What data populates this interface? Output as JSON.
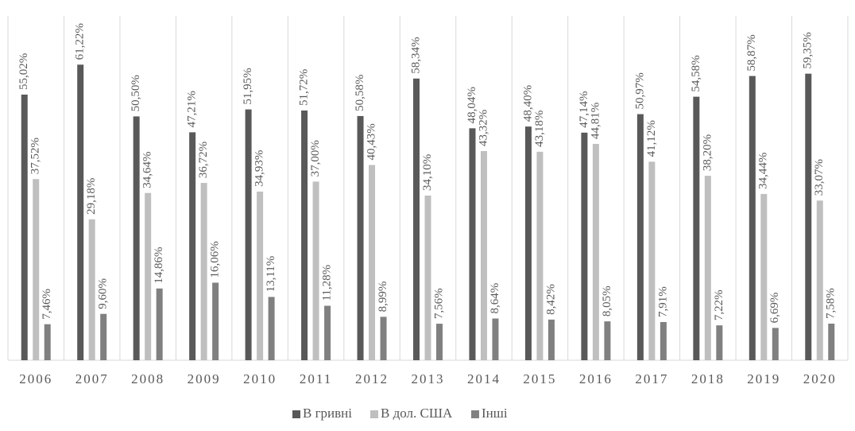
{
  "chart_data": {
    "type": "bar",
    "categories": [
      "2006",
      "2007",
      "2008",
      "2009",
      "2010",
      "2011",
      "2012",
      "2013",
      "2014",
      "2015",
      "2016",
      "2017",
      "2018",
      "2019",
      "2020"
    ],
    "series": [
      {
        "name": "В гривні",
        "color": "#595959",
        "values": [
          55.02,
          61.22,
          50.5,
          47.21,
          51.95,
          51.72,
          50.58,
          58.34,
          48.04,
          48.4,
          47.14,
          50.97,
          54.58,
          58.87,
          59.35
        ],
        "value_labels": [
          "55,02%",
          "61,22%",
          "50,50%",
          "47,21%",
          "51,95%",
          "51,72%",
          "50,58%",
          "58,34%",
          "48,04%",
          "48,40%",
          "47,14%",
          "50,97%",
          "54,58%",
          "58,87%",
          "59,35%"
        ]
      },
      {
        "name": "В дол. США",
        "color": "#bfbfbf",
        "values": [
          37.52,
          29.18,
          34.64,
          36.72,
          34.93,
          37.0,
          40.43,
          34.1,
          43.32,
          43.18,
          44.81,
          41.12,
          38.2,
          34.44,
          33.07
        ],
        "value_labels": [
          "37,52%",
          "29,18%",
          "34,64%",
          "36,72%",
          "34,93%",
          "37,00%",
          "40,43%",
          "34,10%",
          "43,32%",
          "43,18%",
          "44,81%",
          "41,12%",
          "38,20%",
          "34,44%",
          "33,07%"
        ]
      },
      {
        "name": "Інші",
        "color": "#808080",
        "values": [
          7.46,
          9.6,
          14.86,
          16.06,
          13.11,
          11.28,
          8.99,
          7.56,
          8.64,
          8.42,
          8.05,
          7.91,
          7.22,
          6.69,
          7.58
        ],
        "value_labels": [
          "7,46%",
          "9,60%",
          "14,86%",
          "16,06%",
          "13,11%",
          "11,28%",
          "8,99%",
          "7,56%",
          "8,64%",
          "8,42%",
          "8,05%",
          "7,91%",
          "7,22%",
          "6,69%",
          "7,58%"
        ]
      }
    ],
    "ylim": [
      0,
      70
    ],
    "legend": "bottom"
  }
}
